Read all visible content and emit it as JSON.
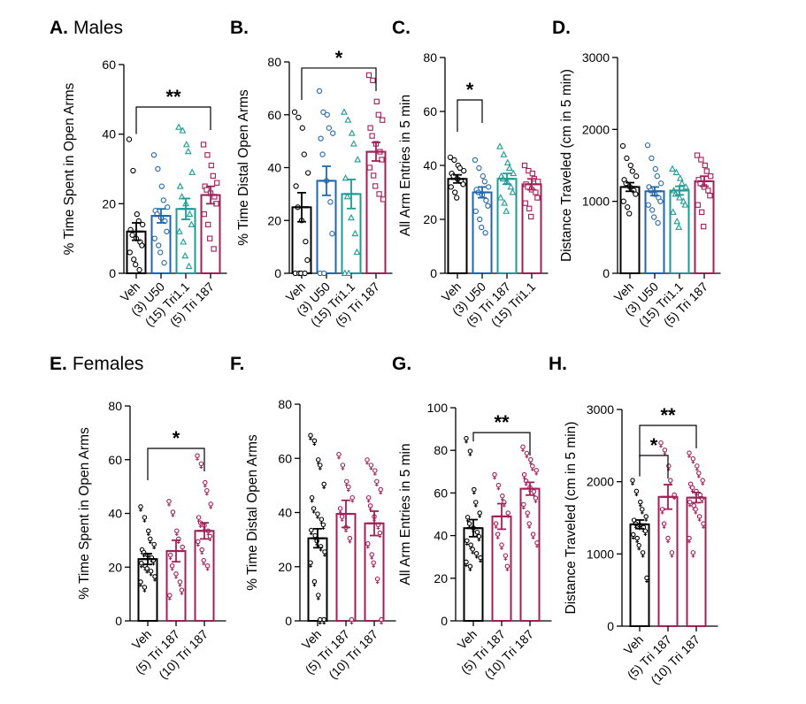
{
  "chart_data": [
    {
      "id": "A",
      "type": "bar",
      "panel_letter": "A.",
      "panel_title": "Males",
      "ylabel": "% Time Spent in Open Arms",
      "ylim": [
        0,
        60
      ],
      "yticks": [
        0,
        20,
        40,
        60
      ],
      "categories": [
        "Veh",
        "(3) U50",
        "(15) Tri1.1",
        "(5) Tri 187"
      ],
      "values": [
        12,
        16.5,
        18.5,
        22.5
      ],
      "errors": [
        2.5,
        2,
        3,
        2.5
      ],
      "colors": [
        "#000000",
        "#2166ac",
        "#1e9b94",
        "#a31f5a"
      ],
      "markers": [
        "circle",
        "circle",
        "triangle",
        "square"
      ],
      "points": [
        [
          38.5,
          29.5,
          17,
          15,
          14,
          12.5,
          11,
          10,
          9,
          8,
          6,
          4,
          2.5,
          1
        ],
        [
          34,
          30,
          25,
          21,
          19,
          18,
          17,
          16,
          15,
          12,
          10,
          8,
          6,
          3
        ],
        [
          42,
          41,
          37,
          35,
          29,
          25,
          22,
          20,
          17,
          14,
          12,
          9,
          5,
          2
        ],
        [
          37,
          34,
          31,
          28,
          26,
          25,
          24,
          23,
          22,
          20,
          17,
          14,
          10,
          7
        ]
      ],
      "significance": [
        {
          "from": 0,
          "to": 3,
          "label": "**"
        }
      ]
    },
    {
      "id": "B",
      "type": "bar",
      "panel_letter": "B.",
      "panel_title": "",
      "ylabel": "% Time Distal Open Arms",
      "ylim": [
        0,
        80
      ],
      "yticks": [
        0,
        20,
        40,
        60,
        80
      ],
      "categories": [
        "Veh",
        "(3) U50",
        "(15) Tri1.1",
        "(5) Tri 187"
      ],
      "values": [
        25,
        35,
        30,
        46
      ],
      "errors": [
        5.5,
        5.5,
        5.5,
        3.5
      ],
      "colors": [
        "#000000",
        "#2166ac",
        "#1e9b94",
        "#a31f5a"
      ],
      "markers": [
        "circle",
        "circle",
        "triangle",
        "square"
      ],
      "points": [
        [
          61,
          59,
          55,
          45,
          38,
          33,
          25,
          20,
          12,
          5,
          0,
          0,
          0,
          0
        ],
        [
          69,
          61,
          60,
          55,
          53,
          51,
          45,
          35,
          27,
          15,
          0,
          0
        ],
        [
          61,
          58,
          53,
          49,
          43,
          36,
          29,
          21,
          15,
          8,
          0,
          0
        ],
        [
          75,
          73,
          65,
          60,
          58,
          55,
          52,
          49,
          46,
          43,
          40,
          37,
          33,
          30,
          28
        ]
      ],
      "significance": [
        {
          "from": 0,
          "to": 3,
          "label": "*"
        }
      ]
    },
    {
      "id": "C",
      "type": "bar",
      "panel_letter": "C.",
      "panel_title": "",
      "ylabel": "All Arm Entries in 5 min",
      "ylim": [
        0,
        80
      ],
      "yticks": [
        0,
        20,
        40,
        60,
        80
      ],
      "categories": [
        "Veh",
        "(3) U50",
        "(5) Tri 187",
        "(15) Tri1.1"
      ],
      "values": [
        35,
        30,
        35,
        33
      ],
      "errors": [
        1.5,
        2,
        2,
        2
      ],
      "colors": [
        "#000000",
        "#2166ac",
        "#1e9b94",
        "#a31f5a"
      ],
      "markers": [
        "circle",
        "circle",
        "triangle",
        "square"
      ],
      "points": [
        [
          43,
          42,
          40,
          39,
          38,
          37,
          36,
          35,
          34,
          33,
          32,
          30,
          28
        ],
        [
          42,
          39,
          36,
          34,
          32,
          31,
          30,
          29,
          27,
          25,
          23,
          20,
          17,
          15
        ],
        [
          47,
          44,
          41,
          39,
          37,
          36,
          35,
          34,
          32,
          30,
          28,
          26,
          23
        ],
        [
          40,
          38,
          37,
          35,
          34,
          33,
          32,
          31,
          30,
          28,
          26,
          24,
          21
        ]
      ],
      "significance": [
        {
          "from": 0,
          "to": 1,
          "label": "*"
        }
      ]
    },
    {
      "id": "D",
      "type": "bar",
      "panel_letter": "D.",
      "panel_title": "",
      "ylabel": "Distance Traveled (cm in 5 min)",
      "ylim": [
        0,
        3000
      ],
      "yticks": [
        0,
        1000,
        2000,
        3000
      ],
      "categories": [
        "Veh",
        "(3) U50",
        "(15) Tri1.1",
        "(5) Tri 187"
      ],
      "values": [
        1200,
        1140,
        1150,
        1280
      ],
      "errors": [
        60,
        60,
        60,
        70
      ],
      "colors": [
        "#000000",
        "#2166ac",
        "#1e9b94",
        "#a31f5a"
      ],
      "markers": [
        "circle",
        "circle",
        "triangle",
        "square"
      ],
      "points": [
        [
          1770,
          1600,
          1500,
          1420,
          1350,
          1300,
          1250,
          1200,
          1150,
          1100,
          1000,
          920,
          830
        ],
        [
          1780,
          1600,
          1450,
          1350,
          1250,
          1200,
          1150,
          1100,
          1050,
          1000,
          950,
          880,
          780,
          700
        ],
        [
          1450,
          1400,
          1320,
          1250,
          1200,
          1150,
          1100,
          1050,
          1000,
          950,
          850,
          720,
          640
        ],
        [
          1640,
          1580,
          1500,
          1420,
          1350,
          1300,
          1250,
          1200,
          1150,
          1080,
          950,
          850,
          650
        ]
      ],
      "significance": []
    },
    {
      "id": "E",
      "type": "bar",
      "panel_letter": "E.",
      "panel_title": "Females",
      "ylabel": "% Time Spent in Open Arms",
      "ylim": [
        0,
        80
      ],
      "yticks": [
        0,
        20,
        40,
        60,
        80
      ],
      "categories": [
        "Veh",
        "(5) Tri 187",
        "(10) Tri 187"
      ],
      "values": [
        23,
        26,
        33.5
      ],
      "errors": [
        2,
        4,
        3
      ],
      "colors": [
        "#000000",
        "#a31f5a",
        "#a31f5a"
      ],
      "markers": [
        "female",
        "female",
        "female"
      ],
      "points": [
        [
          42,
          38,
          33,
          30,
          28,
          26,
          25,
          24,
          23,
          22,
          21,
          20,
          19,
          18,
          16,
          14,
          12
        ],
        [
          44,
          40,
          33,
          30,
          27,
          24,
          20,
          17,
          14,
          11,
          9
        ],
        [
          61,
          58,
          51,
          48,
          43,
          38,
          36,
          35,
          33,
          31,
          29,
          26,
          22,
          20
        ]
      ],
      "significance": [
        {
          "from": 0,
          "to": 2,
          "label": "*"
        }
      ]
    },
    {
      "id": "F",
      "type": "bar",
      "panel_letter": "F.",
      "panel_title": "",
      "ylabel": "% Time Distal Open Arms",
      "ylim": [
        0,
        80
      ],
      "yticks": [
        0,
        20,
        40,
        60,
        80
      ],
      "categories": [
        "Veh",
        "(5) Tri 187",
        "(10) Tri 187"
      ],
      "values": [
        30.5,
        39.5,
        36
      ],
      "errors": [
        3.5,
        5,
        4.5
      ],
      "colors": [
        "#000000",
        "#a31f5a",
        "#a31f5a"
      ],
      "markers": [
        "female",
        "female",
        "female"
      ],
      "points": [
        [
          68,
          66,
          59,
          57,
          50,
          45,
          41,
          39,
          37,
          35,
          33,
          31,
          29,
          27,
          25,
          21,
          14,
          9,
          0,
          0
        ],
        [
          61,
          57,
          51,
          49,
          45,
          41,
          38,
          34,
          30,
          0
        ],
        [
          59,
          57,
          55,
          51,
          48,
          45,
          42,
          38,
          35,
          32,
          28,
          24,
          21,
          15,
          0
        ]
      ],
      "significance": []
    },
    {
      "id": "G",
      "type": "bar",
      "panel_letter": "G.",
      "panel_title": "",
      "ylabel": "All Arm Entries in 5 min",
      "ylim": [
        0,
        100
      ],
      "yticks": [
        0,
        20,
        40,
        60,
        80,
        100
      ],
      "categories": [
        "Veh",
        "(5) Tri 187",
        "(10) Tri 187"
      ],
      "values": [
        43.5,
        49,
        62
      ],
      "errors": [
        4,
        6,
        3
      ],
      "colors": [
        "#000000",
        "#a31f5a",
        "#a31f5a"
      ],
      "markers": [
        "female",
        "female",
        "female"
      ],
      "points": [
        [
          85,
          79,
          61,
          55,
          50,
          48,
          45,
          43,
          41,
          39,
          37,
          35,
          33,
          31,
          29,
          27,
          25
        ],
        [
          68,
          63,
          58,
          55,
          50,
          45,
          40,
          35,
          30,
          25
        ],
        [
          81,
          78,
          75,
          72,
          70,
          68,
          65,
          62,
          60,
          57,
          54,
          50,
          45,
          40,
          36
        ]
      ],
      "significance": [
        {
          "from": 0,
          "to": 2,
          "label": "**"
        }
      ]
    },
    {
      "id": "H",
      "type": "bar",
      "panel_letter": "H.",
      "panel_title": "",
      "ylabel": "Distance Traveled (cm in 5 min)",
      "ylim": [
        0,
        3000
      ],
      "yticks": [
        0,
        1000,
        2000,
        3000
      ],
      "categories": [
        "Veh",
        "(5) Tri 187",
        "(10) Tri 187"
      ],
      "values": [
        1410,
        1790,
        1780
      ],
      "errors": [
        60,
        170,
        70
      ],
      "colors": [
        "#000000",
        "#a31f5a",
        "#a31f5a"
      ],
      "markers": [
        "female",
        "female",
        "female"
      ],
      "points": [
        [
          2000,
          1850,
          1700,
          1600,
          1500,
          1450,
          1400,
          1380,
          1350,
          1300,
          1250,
          1200,
          1100,
          1000,
          650
        ],
        [
          2520,
          2420,
          2200,
          2000,
          1800,
          1600,
          1400,
          1200,
          1000
        ],
        [
          2380,
          2300,
          2200,
          2100,
          2000,
          1950,
          1900,
          1850,
          1800,
          1750,
          1700,
          1650,
          1600,
          1500,
          1400,
          1200,
          1000
        ]
      ],
      "significance": [
        {
          "from": 0,
          "to": 1,
          "label": "*"
        },
        {
          "from": 0,
          "to": 2,
          "label": "**"
        }
      ]
    }
  ]
}
